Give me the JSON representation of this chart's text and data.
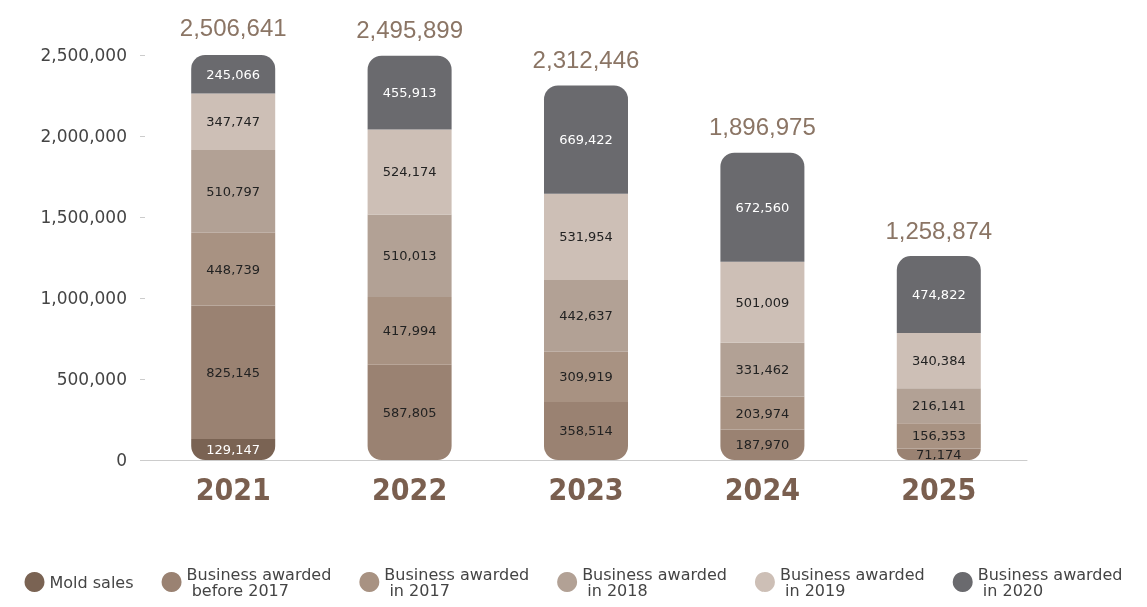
{
  "chart_data": {
    "type": "bar",
    "stacked": true,
    "categories": [
      "2021",
      "2022",
      "2023",
      "2024",
      "2025"
    ],
    "series": [
      {
        "name": "Mold sales",
        "color": "#7a6353",
        "values": [
          129147,
          null,
          null,
          null,
          null
        ],
        "value_labels": [
          "129,147",
          null,
          null,
          null,
          null
        ]
      },
      {
        "name": "Business awarded before 2017",
        "color": "#9a8272",
        "values": [
          825145,
          587805,
          358514,
          187970,
          71174
        ],
        "value_labels": [
          "825,145",
          "587,805",
          "358,514",
          "187,970",
          "71,174"
        ]
      },
      {
        "name": "Business awarded in 2017",
        "color": "#a89282",
        "values": [
          448739,
          417994,
          309919,
          203974,
          156353
        ],
        "value_labels": [
          "448,739",
          "417,994",
          "309,919",
          "203,974",
          "156,353"
        ]
      },
      {
        "name": "Business awarded in 2018",
        "color": "#b2a195",
        "values": [
          510797,
          510013,
          442637,
          331462,
          216141
        ],
        "value_labels": [
          "510,797",
          "510,013",
          "442,637",
          "331,462",
          "216,141"
        ]
      },
      {
        "name": "Business awarded in 2019",
        "color": "#cdbfb6",
        "values": [
          347747,
          524174,
          531954,
          501009,
          340384
        ],
        "value_labels": [
          "347,747",
          "524,174",
          "531,954",
          "501,009",
          "340,384"
        ]
      },
      {
        "name": "Business awarded in 2020",
        "color": "#6a6a6e",
        "values": [
          245066,
          455913,
          669422,
          672560,
          474822
        ],
        "value_labels": [
          "245,066",
          "455,913",
          "669,422",
          "672,560",
          "474,822"
        ]
      }
    ],
    "totals": [
      "2,506,641",
      "2,495,899",
      "2,312,446",
      "1,896,975",
      "1,258,874"
    ],
    "ylim": [
      0,
      2500000
    ],
    "yticks": [
      0,
      {
        "value": 500000,
        "label": "500,000"
      },
      {
        "value": 1000000,
        "label": "1,000,000"
      },
      {
        "value": 1500000,
        "label": "1,500,000"
      },
      {
        "value": 2000000,
        "label": "2,000,000"
      },
      {
        "value": 2500000,
        "label": "2,500,000"
      }
    ],
    "grid": false,
    "legend": "bottom"
  }
}
